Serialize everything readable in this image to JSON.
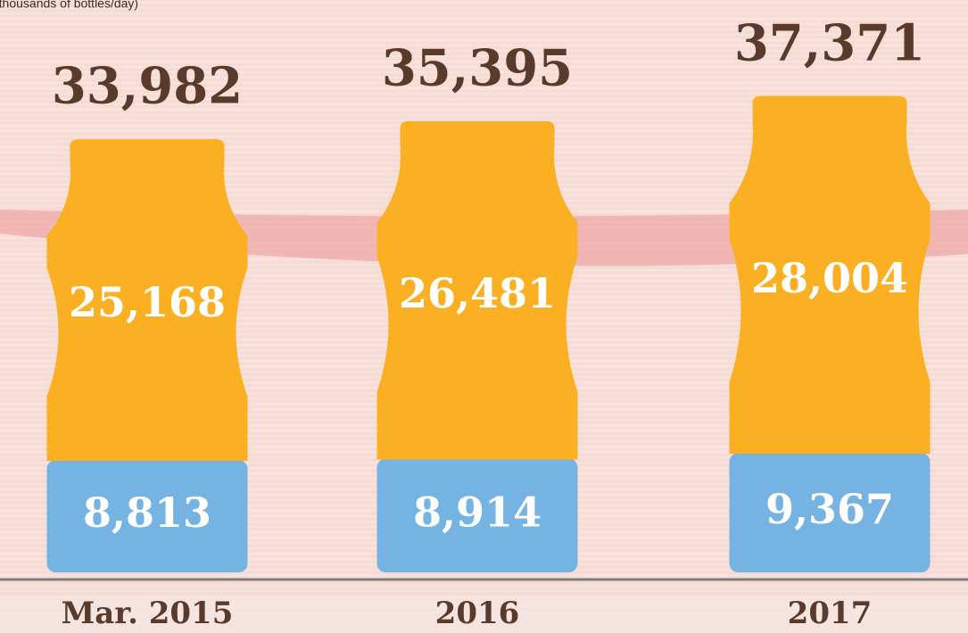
{
  "chart_data": {
    "type": "stacked_bar",
    "subtitle": "(thousands of bottles/day)",
    "categories": [
      "Mar. 2015",
      "2016",
      "2017"
    ],
    "series": [
      {
        "color": "#74b3e2",
        "values": [
          8813,
          8914,
          9367
        ],
        "value_labels": [
          "8,813",
          "8,914",
          "9,367"
        ]
      },
      {
        "color": "#fbb023",
        "values": [
          25168,
          26481,
          28004
        ],
        "value_labels": [
          "25,168",
          "26,481",
          "28,004"
        ]
      }
    ],
    "totals": [
      33982,
      35395,
      37371
    ],
    "total_labels": [
      "33,982",
      "35,395",
      "37,371"
    ]
  }
}
